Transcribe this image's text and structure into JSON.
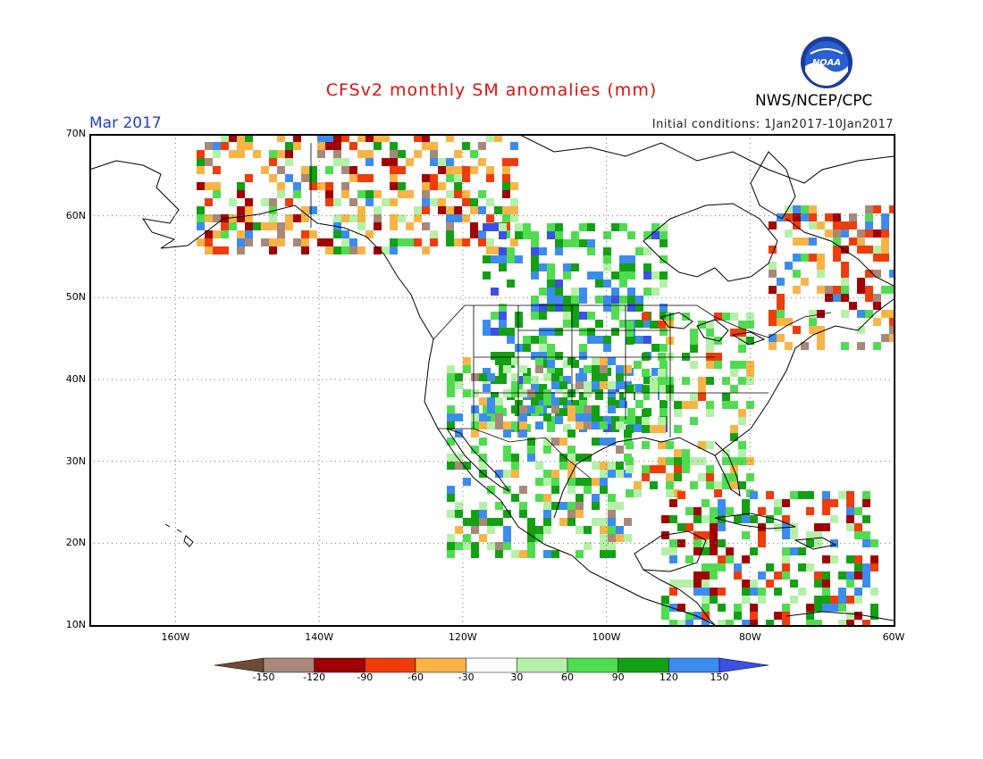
{
  "title": "CFSv2 monthly SM anomalies (mm)",
  "valid_month": "Mar 2017",
  "initial_conditions": "Initial conditions: 1Jan2017-10Jan2017",
  "agency": "NWS/NCEP/CPC",
  "logo_text": "NOAA",
  "lat_labels": [
    "70N",
    "60N",
    "50N",
    "40N",
    "30N",
    "20N",
    "10N"
  ],
  "lon_labels": [
    "160W",
    "140W",
    "120W",
    "100W",
    "80W",
    "60W"
  ],
  "map_extent": {
    "lon_min": -172,
    "lon_max": -60,
    "lat_min": 10,
    "lat_max": 70
  },
  "colorbar": {
    "colors": [
      "#6e4a38",
      "#a8887a",
      "#a00000",
      "#f03c0a",
      "#f8b446",
      "#ffffff",
      "#b4f0a8",
      "#50dc50",
      "#14a014",
      "#3c8cf0",
      "#3c50e6"
    ],
    "labels": [
      "-150",
      "-120",
      "-90",
      "-60",
      "-30",
      "30",
      "60",
      "90",
      "120",
      "150"
    ]
  }
}
